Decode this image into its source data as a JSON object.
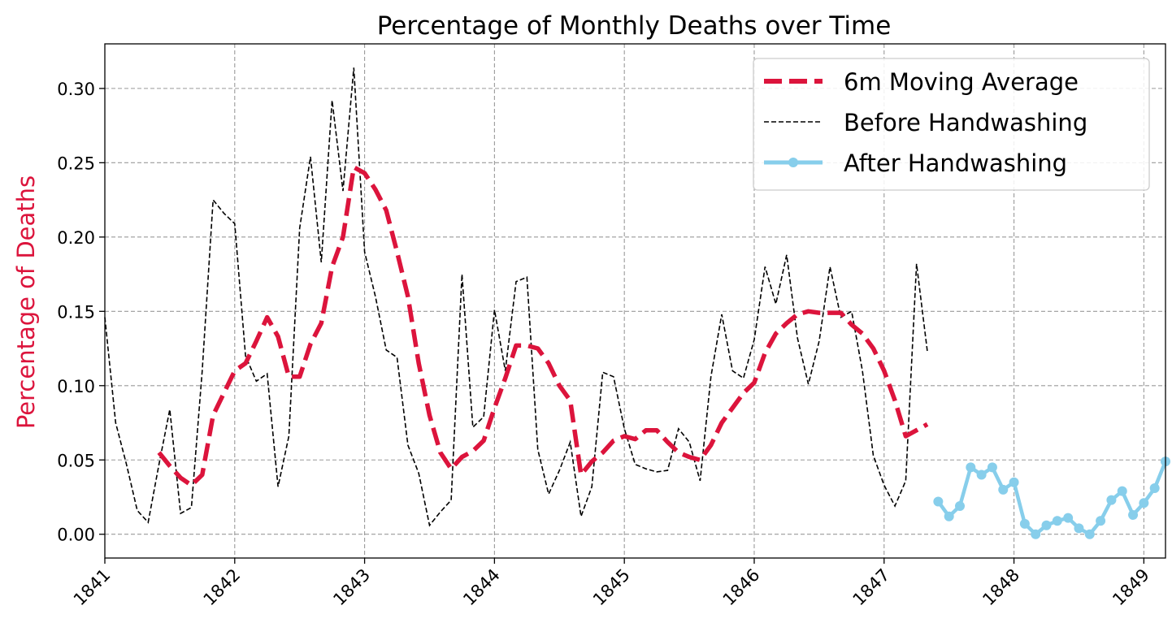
{
  "chart_data": {
    "type": "line",
    "title": "Percentage of Monthly Deaths over Time",
    "xlabel": "",
    "ylabel": "Percentage of Deaths",
    "xlim": [
      "1841-01",
      "1849-03"
    ],
    "ylim": [
      -0.016,
      0.33
    ],
    "x_ticks": [
      "1841",
      "1842",
      "1843",
      "1844",
      "1845",
      "1846",
      "1847",
      "1848",
      "1849"
    ],
    "y_ticks": [
      "0.00",
      "0.05",
      "0.10",
      "0.15",
      "0.20",
      "0.25",
      "0.30"
    ],
    "y_tick_values": [
      0,
      0.05,
      0.1,
      0.15,
      0.2,
      0.25,
      0.3
    ],
    "grid": true,
    "legend_position": "top-right",
    "colors": {
      "moving_average": "#dc143c",
      "before": "#000000",
      "after": "#87ceeb",
      "grid": "#9a9a9a",
      "ylabel": "#dc143c"
    },
    "series": [
      {
        "name": "6m Moving Average",
        "style": "thick-dashed",
        "x": [
          "1841-06",
          "1841-07",
          "1841-08",
          "1841-09",
          "1841-10",
          "1841-11",
          "1841-12",
          "1842-01",
          "1842-02",
          "1842-03",
          "1842-04",
          "1842-05",
          "1842-06",
          "1842-07",
          "1842-08",
          "1842-09",
          "1842-10",
          "1842-11",
          "1842-12",
          "1843-01",
          "1843-02",
          "1843-03",
          "1843-04",
          "1843-05",
          "1843-06",
          "1843-07",
          "1843-08",
          "1843-09",
          "1843-10",
          "1843-11",
          "1843-12",
          "1844-01",
          "1844-02",
          "1844-03",
          "1844-04",
          "1844-05",
          "1844-06",
          "1844-07",
          "1844-08",
          "1844-09",
          "1844-10",
          "1844-11",
          "1844-12",
          "1845-01",
          "1845-02",
          "1845-03",
          "1845-04",
          "1845-05",
          "1845-06",
          "1845-07",
          "1845-08",
          "1845-09",
          "1845-10",
          "1845-11",
          "1845-12",
          "1846-01",
          "1846-02",
          "1846-03",
          "1846-04",
          "1846-05",
          "1846-06",
          "1846-07",
          "1846-08",
          "1846-09",
          "1846-10",
          "1846-11",
          "1846-12",
          "1847-01",
          "1847-02",
          "1847-03",
          "1847-04",
          "1847-05"
        ],
        "values": [
          0.055,
          0.046,
          0.038,
          0.033,
          0.04,
          0.08,
          0.095,
          0.11,
          0.115,
          0.13,
          0.146,
          0.133,
          0.106,
          0.106,
          0.128,
          0.142,
          0.18,
          0.2,
          0.247,
          0.243,
          0.232,
          0.218,
          0.19,
          0.16,
          0.115,
          0.08,
          0.055,
          0.044,
          0.052,
          0.056,
          0.063,
          0.085,
          0.105,
          0.127,
          0.127,
          0.125,
          0.115,
          0.1,
          0.09,
          0.04,
          0.049,
          0.055,
          0.063,
          0.066,
          0.064,
          0.07,
          0.07,
          0.062,
          0.055,
          0.052,
          0.05,
          0.06,
          0.075,
          0.085,
          0.095,
          0.102,
          0.122,
          0.135,
          0.142,
          0.148,
          0.15,
          0.149,
          0.149,
          0.149,
          0.141,
          0.135,
          0.125,
          0.11,
          0.09,
          0.066,
          0.07,
          0.074
        ]
      },
      {
        "name": "Before Handwashing",
        "style": "thin-dashed",
        "x": [
          "1841-01",
          "1841-02",
          "1841-03",
          "1841-04",
          "1841-05",
          "1841-06",
          "1841-07",
          "1841-08",
          "1841-09",
          "1841-10",
          "1841-11",
          "1841-12",
          "1842-01",
          "1842-02",
          "1842-03",
          "1842-04",
          "1842-05",
          "1842-06",
          "1842-07",
          "1842-08",
          "1842-09",
          "1842-10",
          "1842-11",
          "1842-12",
          "1843-01",
          "1843-02",
          "1843-03",
          "1843-04",
          "1843-05",
          "1843-06",
          "1843-07",
          "1843-08",
          "1843-09",
          "1843-10",
          "1843-11",
          "1843-12",
          "1844-01",
          "1844-02",
          "1844-03",
          "1844-04",
          "1844-05",
          "1844-06",
          "1844-07",
          "1844-08",
          "1844-09",
          "1844-10",
          "1844-11",
          "1844-12",
          "1845-01",
          "1845-02",
          "1845-03",
          "1845-04",
          "1845-05",
          "1845-06",
          "1845-07",
          "1845-08",
          "1845-09",
          "1845-10",
          "1845-11",
          "1845-12",
          "1846-01",
          "1846-02",
          "1846-03",
          "1846-04",
          "1846-05",
          "1846-06",
          "1846-07",
          "1846-08",
          "1846-09",
          "1846-10",
          "1846-11",
          "1846-12",
          "1847-01",
          "1847-02",
          "1847-03",
          "1847-04",
          "1847-05"
        ],
        "values": [
          0.146,
          0.075,
          0.047,
          0.016,
          0.008,
          0.047,
          0.084,
          0.014,
          0.018,
          0.11,
          0.225,
          0.216,
          0.209,
          0.12,
          0.103,
          0.108,
          0.032,
          0.066,
          0.206,
          0.254,
          0.183,
          0.292,
          0.231,
          0.314,
          0.19,
          0.16,
          0.124,
          0.119,
          0.06,
          0.041,
          0.006,
          0.015,
          0.023,
          0.175,
          0.072,
          0.079,
          0.151,
          0.11,
          0.17,
          0.173,
          0.057,
          0.027,
          0.043,
          0.062,
          0.012,
          0.032,
          0.109,
          0.106,
          0.071,
          0.047,
          0.044,
          0.042,
          0.043,
          0.071,
          0.062,
          0.036,
          0.106,
          0.148,
          0.11,
          0.105,
          0.131,
          0.18,
          0.155,
          0.188,
          0.132,
          0.101,
          0.13,
          0.18,
          0.146,
          0.15,
          0.11,
          0.053,
          0.033,
          0.019,
          0.036,
          0.182,
          0.123
        ]
      },
      {
        "name": "After Handwashing",
        "style": "solid-markers",
        "x": [
          "1847-06",
          "1847-07",
          "1847-08",
          "1847-09",
          "1847-10",
          "1847-11",
          "1847-12",
          "1848-01",
          "1848-02",
          "1848-03",
          "1848-04",
          "1848-05",
          "1848-06",
          "1848-07",
          "1848-08",
          "1848-09",
          "1848-10",
          "1848-11",
          "1848-12",
          "1849-01",
          "1849-02",
          "1849-03"
        ],
        "values": [
          0.022,
          0.012,
          0.019,
          0.045,
          0.04,
          0.045,
          0.03,
          0.035,
          0.007,
          0.0,
          0.006,
          0.009,
          0.011,
          0.004,
          0.0,
          0.009,
          0.023,
          0.029,
          0.013,
          0.021,
          0.031,
          0.049
        ]
      }
    ]
  }
}
